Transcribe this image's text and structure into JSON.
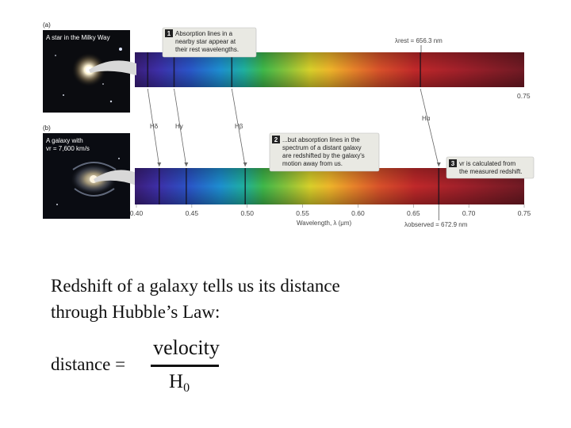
{
  "panel_a": {
    "letter": "(a)",
    "photo_label": "A star in the Milky Way",
    "callout_number": "1",
    "callout_lines": [
      "Absorption lines in a",
      "nearby star appear at",
      "their rest wavelengths."
    ],
    "lambda_rest_label": "λrest = 656.3 nm",
    "axis_end_label": "0.75"
  },
  "panel_b": {
    "letter": "(b)",
    "photo_label_line1": "A galaxy with",
    "photo_label_line2": "vr = 7,600 km/s",
    "callout2_number": "2",
    "callout2_lines": [
      "...but absorption lines in the",
      "spectrum of a distant galaxy",
      "are redshifted by the galaxy's",
      "motion away from us."
    ],
    "callout3_number": "3",
    "callout3_lines": [
      "vr is calculated from",
      "the measured redshift."
    ],
    "lambda_observed_label": "λobserved = 672.9 nm",
    "xlabel": "Wavelength, λ (μm)"
  },
  "lines": {
    "h_delta": "Hδ",
    "h_gamma": "Hγ",
    "h_beta": "Hβ",
    "h_alpha": "Hα"
  },
  "chart_data": {
    "type": "spectrum",
    "x_unit": "μm",
    "xlim": [
      0.4,
      0.75
    ],
    "ticks": [
      "0.40",
      "0.45",
      "0.50",
      "0.55",
      "0.60",
      "0.65",
      "0.70",
      "0.75"
    ],
    "rest_lines_um": [
      0.4102,
      0.434,
      0.4861,
      0.6563
    ],
    "observed_lines_um": [
      0.4206,
      0.445,
      0.4982,
      0.6729
    ]
  },
  "caption": {
    "line1": "Redshift of a galaxy tells us its distance",
    "line2": "through Hubble’s Law:"
  },
  "equation": {
    "lhs": "distance =",
    "numerator": "velocity",
    "denominator": "H",
    "subscript": "0"
  }
}
